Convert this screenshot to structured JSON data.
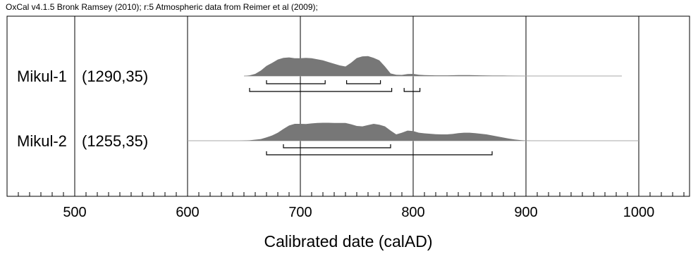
{
  "header": {
    "credit": "OxCal v4.1.5 Bronk Ramsey (2010); r:5 Atmospheric data from Reimer et al (2009);"
  },
  "chart_data": {
    "type": "area",
    "xlabel": "Calibrated date (calAD)",
    "xlim": [
      440,
      1045
    ],
    "major_ticks": [
      500,
      600,
      700,
      800,
      900,
      1000
    ],
    "tick_labels": [
      "500",
      "600",
      "700",
      "800",
      "900",
      "1000"
    ],
    "minor_tick_step": 10,
    "grid": "vertical lines at major ticks",
    "colors": {
      "distribution": "#777777",
      "axes": "#000000",
      "grid": "#000000",
      "baseline": "#aaaaaa"
    },
    "series": [
      {
        "name": "Mikul-1",
        "label_name": "Mikul-1",
        "label_params": "(1290,35)",
        "baseline_range": [
          650,
          985
        ],
        "density": [
          [
            650,
            0.0
          ],
          [
            655,
            0.03
          ],
          [
            660,
            0.1
          ],
          [
            665,
            0.26
          ],
          [
            670,
            0.48
          ],
          [
            675,
            0.62
          ],
          [
            680,
            0.78
          ],
          [
            685,
            0.86
          ],
          [
            690,
            0.88
          ],
          [
            695,
            0.84
          ],
          [
            700,
            0.84
          ],
          [
            705,
            0.86
          ],
          [
            710,
            0.84
          ],
          [
            715,
            0.79
          ],
          [
            720,
            0.74
          ],
          [
            725,
            0.66
          ],
          [
            730,
            0.58
          ],
          [
            735,
            0.5
          ],
          [
            740,
            0.45
          ],
          [
            745,
            0.63
          ],
          [
            750,
            0.85
          ],
          [
            755,
            0.93
          ],
          [
            760,
            0.94
          ],
          [
            765,
            0.86
          ],
          [
            770,
            0.74
          ],
          [
            775,
            0.45
          ],
          [
            780,
            0.12
          ],
          [
            785,
            0.06
          ],
          [
            790,
            0.05
          ],
          [
            795,
            0.09
          ],
          [
            800,
            0.1
          ],
          [
            805,
            0.06
          ],
          [
            810,
            0.04
          ],
          [
            820,
            0.03
          ],
          [
            830,
            0.03
          ],
          [
            840,
            0.04
          ],
          [
            850,
            0.04
          ],
          [
            860,
            0.03
          ],
          [
            870,
            0.02
          ],
          [
            880,
            0.02
          ],
          [
            890,
            0.01
          ],
          [
            900,
            0.0
          ]
        ],
        "ranges_68": [
          [
            670,
            722
          ],
          [
            741,
            771
          ]
        ],
        "ranges_95": [
          [
            655,
            781
          ],
          [
            792,
            806
          ]
        ]
      },
      {
        "name": "Mikul-2",
        "label_name": "Mikul-2",
        "label_params": "(1255,35)",
        "baseline_range": [
          600,
          1000
        ],
        "density": [
          [
            645,
            0.0
          ],
          [
            655,
            0.02
          ],
          [
            665,
            0.08
          ],
          [
            670,
            0.16
          ],
          [
            675,
            0.25
          ],
          [
            680,
            0.38
          ],
          [
            685,
            0.56
          ],
          [
            690,
            0.72
          ],
          [
            695,
            0.8
          ],
          [
            700,
            0.8
          ],
          [
            705,
            0.79
          ],
          [
            710,
            0.82
          ],
          [
            715,
            0.84
          ],
          [
            720,
            0.85
          ],
          [
            725,
            0.85
          ],
          [
            730,
            0.84
          ],
          [
            735,
            0.84
          ],
          [
            740,
            0.84
          ],
          [
            745,
            0.78
          ],
          [
            750,
            0.7
          ],
          [
            755,
            0.68
          ],
          [
            760,
            0.74
          ],
          [
            765,
            0.8
          ],
          [
            770,
            0.76
          ],
          [
            775,
            0.68
          ],
          [
            780,
            0.48
          ],
          [
            785,
            0.3
          ],
          [
            790,
            0.38
          ],
          [
            795,
            0.48
          ],
          [
            800,
            0.46
          ],
          [
            805,
            0.38
          ],
          [
            810,
            0.35
          ],
          [
            815,
            0.33
          ],
          [
            820,
            0.31
          ],
          [
            825,
            0.3
          ],
          [
            830,
            0.3
          ],
          [
            835,
            0.32
          ],
          [
            840,
            0.36
          ],
          [
            845,
            0.38
          ],
          [
            850,
            0.38
          ],
          [
            855,
            0.36
          ],
          [
            860,
            0.33
          ],
          [
            865,
            0.3
          ],
          [
            870,
            0.25
          ],
          [
            875,
            0.2
          ],
          [
            880,
            0.15
          ],
          [
            885,
            0.1
          ],
          [
            890,
            0.06
          ],
          [
            895,
            0.03
          ],
          [
            900,
            0.01
          ],
          [
            905,
            0.0
          ]
        ],
        "ranges_68": [
          [
            685,
            780
          ]
        ],
        "ranges_95": [
          [
            670,
            870
          ]
        ]
      }
    ]
  }
}
